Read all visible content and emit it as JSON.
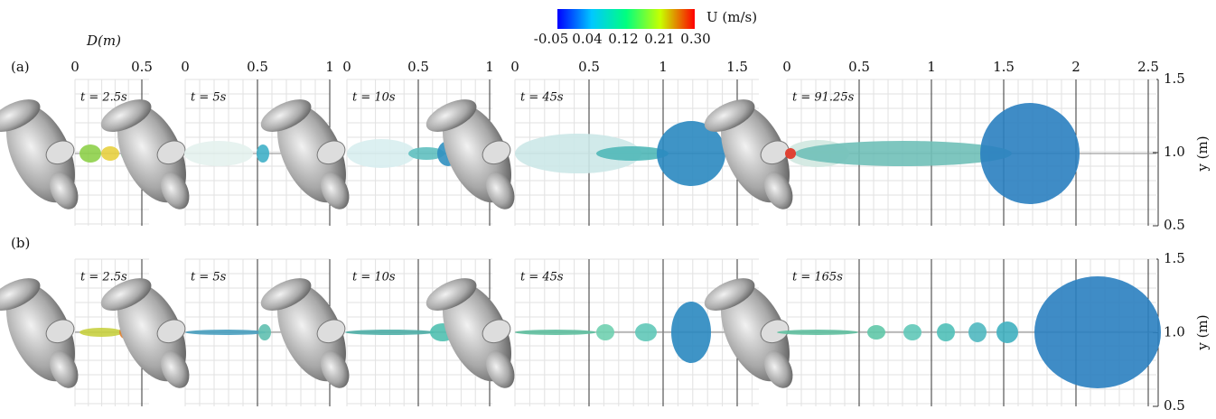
{
  "colorbar": {
    "label": "U (m/s)",
    "ticks": [
      "-0.05",
      "0.04",
      "0.12",
      "0.21",
      "0.30"
    ],
    "colors": [
      "#0000ff",
      "#00c8ff",
      "#00ff80",
      "#c8ff00",
      "#ff0000"
    ]
  },
  "x_axis_label": "D(m)",
  "y_axis": {
    "label": "y (m)",
    "ticks": [
      "1.5",
      "1.0",
      "0.5"
    ]
  },
  "panels": [
    {
      "label": "(a)",
      "frames": [
        {
          "time": "t = 2.5s",
          "xticks": [
            "0",
            "0.5"
          ]
        },
        {
          "time": "t = 5s",
          "xticks": [
            "0",
            "0.5",
            "1"
          ]
        },
        {
          "time": "t = 10s",
          "xticks": [
            "0",
            "0.5",
            "1"
          ]
        },
        {
          "time": "t = 45s",
          "xticks": [
            "0",
            "0.5",
            "1",
            "1.5"
          ]
        },
        {
          "time": "t = 91.25s",
          "xticks": [
            "0",
            "0.5",
            "1",
            "1.5",
            "2",
            "2.5"
          ]
        }
      ]
    },
    {
      "label": "(b)",
      "frames": [
        {
          "time": "t = 2.5s"
        },
        {
          "time": "t = 5s"
        },
        {
          "time": "t = 10s"
        },
        {
          "time": "t = 45s"
        },
        {
          "time": "t = 165s"
        }
      ]
    }
  ]
}
